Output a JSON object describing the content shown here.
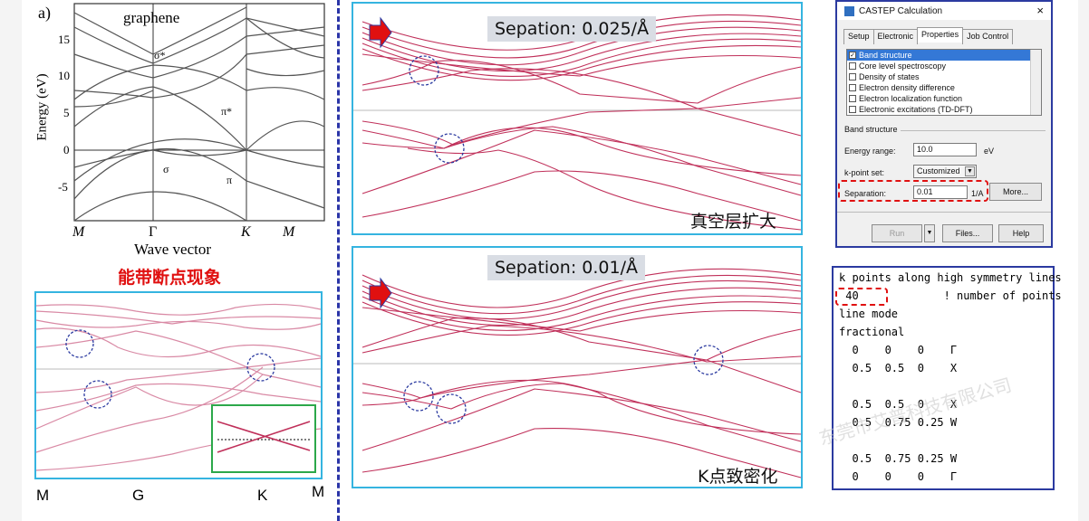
{
  "left_top": {
    "panel_letter": "a)",
    "title": "graphene",
    "ylabel": "Energy (eV)",
    "yticks": [
      "15",
      "10",
      "5",
      "0",
      "-5"
    ],
    "xticks": [
      "M",
      "Γ",
      "K",
      "M"
    ],
    "xlabel": "Wave vector",
    "band_labels": [
      "σ*",
      "π*",
      "σ",
      "π"
    ]
  },
  "red_title": "能带断点现象",
  "left_bottom": {
    "xticks": [
      "M",
      "G",
      "K",
      "M"
    ]
  },
  "middle_top": {
    "sep_label": "Sepation: 0.025/Å",
    "cn_label": "真空层扩大"
  },
  "middle_bottom": {
    "sep_label": "Sepation: 0.01/Å",
    "cn_label": "K点致密化"
  },
  "dialog": {
    "title": "CASTEP Calculation",
    "close": "×",
    "tabs": [
      "Setup",
      "Electronic",
      "Properties",
      "Job Control"
    ],
    "list_items": [
      {
        "label": "Band structure",
        "checked": "✓"
      },
      {
        "label": "Core level spectroscopy",
        "checked": ""
      },
      {
        "label": "Density of states",
        "checked": ""
      },
      {
        "label": "Electron density difference",
        "checked": ""
      },
      {
        "label": "Electron localization function",
        "checked": ""
      },
      {
        "label": "Electronic excitations (TD-DFT)",
        "checked": ""
      }
    ],
    "section": "Band structure",
    "energy_label": "Energy range:",
    "energy_value": "10.0",
    "energy_unit": "eV",
    "kpoint_label": "k-point set:",
    "kpoint_value": "Customized",
    "separation_label": "Separation:",
    "separation_value": "0.01",
    "separation_unit": "1/A",
    "more_button": "More...",
    "run_button": "Run",
    "files_button": "Files...",
    "help_button": "Help"
  },
  "code": {
    "lines": [
      "k points along high symmetry lines",
      " 40             ! number of points",
      "line mode",
      "fractional",
      "  0    0    0    Γ",
      "  0.5  0.5  0    X",
      "",
      "  0.5  0.5  0    X",
      "  0.5  0.75 0.25 W",
      "",
      "  0.5  0.75 0.25 W",
      "  0    0    0    Γ"
    ]
  },
  "watermark": "东莞市艾普科技有限公司",
  "colors": {
    "band_red": "#c0305a",
    "band_pink": "#d98aa5",
    "frame_blue": "#35b4e0",
    "dialog_blue": "#2b3aa0",
    "highlight_red": "#e01010"
  }
}
